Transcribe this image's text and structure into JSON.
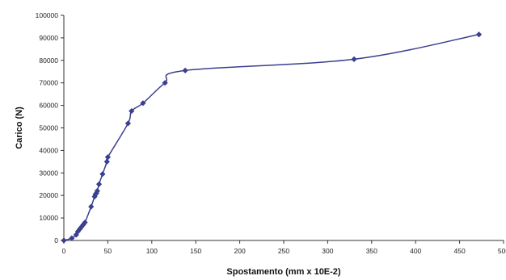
{
  "chart_data": {
    "type": "scatter",
    "title": "",
    "xlabel": "Spostamento (mm x 10E-2)",
    "ylabel": "Carico (N)",
    "xlim": [
      0,
      500
    ],
    "ylim": [
      0,
      100000
    ],
    "x_ticks": [
      "0",
      "50",
      "100",
      "150",
      "200",
      "250",
      "300",
      "350",
      "400",
      "450",
      "500"
    ],
    "y_ticks": [
      "0",
      "10000",
      "20000",
      "30000",
      "40000",
      "50000",
      "60000",
      "70000",
      "80000",
      "90000",
      "100000"
    ],
    "grid": false,
    "legend": "none",
    "line_style": "smoothed line with diamond markers",
    "series_color": "#3b3f8f",
    "series": [
      {
        "points": [
          [
            0,
            0
          ],
          [
            9,
            1000
          ],
          [
            14,
            2500
          ],
          [
            16,
            4000
          ],
          [
            18,
            5000
          ],
          [
            20,
            6000
          ],
          [
            22,
            7000
          ],
          [
            24,
            8000
          ],
          [
            31,
            15000
          ],
          [
            35,
            19500
          ],
          [
            36,
            20500
          ],
          [
            37,
            21000
          ],
          [
            38,
            22000
          ],
          [
            40,
            25000
          ],
          [
            44,
            29500
          ],
          [
            49,
            35000
          ],
          [
            50,
            37000
          ],
          [
            73,
            52000
          ],
          [
            77,
            57500
          ],
          [
            90,
            61000
          ],
          [
            115,
            70000
          ],
          [
            138,
            75500
          ],
          [
            330,
            80500
          ],
          [
            472,
            91500
          ]
        ]
      }
    ]
  }
}
